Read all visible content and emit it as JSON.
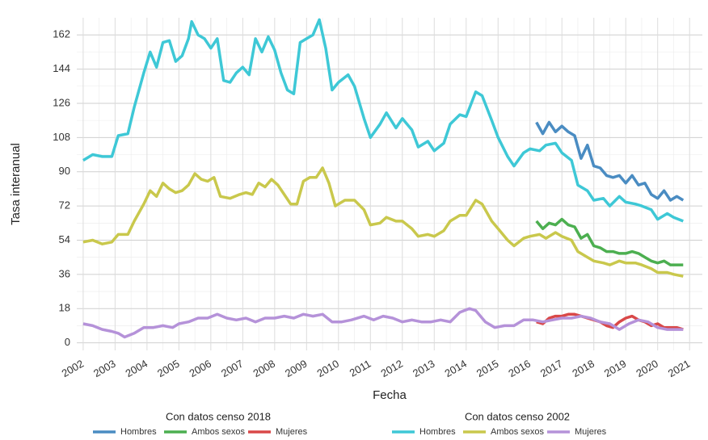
{
  "chart_data": {
    "type": "line",
    "x_label": "Fecha",
    "y_label": "Tasa interanual",
    "xlim": [
      2001.8,
      2021.4
    ],
    "ylim": [
      -4,
      171
    ],
    "xticks": [
      2002,
      2003,
      2004,
      2005,
      2006,
      2007,
      2008,
      2009,
      2010,
      2011,
      2012,
      2013,
      2014,
      2015,
      2016,
      2017,
      2018,
      2019,
      2020,
      2021
    ],
    "yticks": [
      0,
      18,
      36,
      54,
      72,
      90,
      108,
      126,
      144,
      162
    ],
    "grid": true,
    "groups": [
      {
        "title": "Con datos censo 2018",
        "series": [
          {
            "name": "Hombres",
            "color": "#4a8cc2",
            "x": [
              2016.2,
              2016.4,
              2016.6,
              2016.8,
              2017.0,
              2017.2,
              2017.4,
              2017.6,
              2017.8,
              2018.0,
              2018.2,
              2018.4,
              2018.6,
              2018.8,
              2019.0,
              2019.2,
              2019.4,
              2019.6,
              2019.8,
              2020.0,
              2020.2,
              2020.4,
              2020.6,
              2020.8
            ],
            "values": [
              116,
              110,
              116,
              111,
              114,
              111,
              109,
              97,
              104,
              93,
              92,
              88,
              87,
              88,
              84,
              88,
              83,
              84,
              78,
              76,
              80,
              75,
              77,
              75
            ]
          },
          {
            "name": "Ambos sexos",
            "color": "#4caf50",
            "x": [
              2016.2,
              2016.4,
              2016.6,
              2016.8,
              2017.0,
              2017.2,
              2017.4,
              2017.6,
              2017.8,
              2018.0,
              2018.2,
              2018.4,
              2018.6,
              2018.8,
              2019.0,
              2019.2,
              2019.4,
              2019.6,
              2019.8,
              2020.0,
              2020.2,
              2020.4,
              2020.6,
              2020.8
            ],
            "values": [
              64,
              60,
              63,
              62,
              65,
              62,
              61,
              55,
              57,
              51,
              50,
              48,
              48,
              47,
              47,
              48,
              47,
              45,
              43,
              42,
              43,
              41,
              41,
              41
            ]
          },
          {
            "name": "Mujeres",
            "color": "#d94848",
            "x": [
              2016.2,
              2016.4,
              2016.6,
              2016.8,
              2017.0,
              2017.2,
              2017.4,
              2017.6,
              2017.8,
              2018.0,
              2018.2,
              2018.4,
              2018.6,
              2018.8,
              2019.0,
              2019.2,
              2019.4,
              2019.6,
              2019.8,
              2020.0,
              2020.2,
              2020.4,
              2020.6,
              2020.8
            ],
            "values": [
              11,
              10,
              13,
              14,
              14,
              15,
              15,
              14,
              13,
              12,
              11,
              9,
              8,
              11,
              13,
              14,
              12,
              11,
              9,
              10,
              8,
              8,
              8,
              7
            ]
          }
        ]
      },
      {
        "title": "Con datos censo 2002",
        "series": [
          {
            "name": "Hombres",
            "color": "#3ec8d6",
            "x": [
              2002.0,
              2002.3,
              2002.6,
              2002.9,
              2003.1,
              2003.4,
              2003.6,
              2003.9,
              2004.1,
              2004.3,
              2004.5,
              2004.7,
              2004.9,
              2005.1,
              2005.3,
              2005.4,
              2005.6,
              2005.8,
              2006.0,
              2006.2,
              2006.4,
              2006.6,
              2006.8,
              2007.0,
              2007.2,
              2007.4,
              2007.6,
              2007.8,
              2008.0,
              2008.2,
              2008.4,
              2008.6,
              2008.8,
              2009.0,
              2009.2,
              2009.4,
              2009.6,
              2009.8,
              2010.0,
              2010.3,
              2010.5,
              2010.8,
              2011.0,
              2011.3,
              2011.5,
              2011.8,
              2012.0,
              2012.3,
              2012.5,
              2012.8,
              2013.0,
              2013.3,
              2013.5,
              2013.8,
              2014.0,
              2014.3,
              2014.5,
              2014.8,
              2015.0,
              2015.3,
              2015.5,
              2015.8,
              2016.0,
              2016.3,
              2016.5,
              2016.8,
              2017.0,
              2017.3,
              2017.5,
              2017.8,
              2018.0,
              2018.3,
              2018.5,
              2018.8,
              2019.0,
              2019.3,
              2019.5,
              2019.8,
              2020.0,
              2020.3,
              2020.5,
              2020.8
            ],
            "values": [
              96,
              99,
              98,
              98,
              109,
              110,
              124,
              142,
              153,
              145,
              158,
              159,
              148,
              151,
              160,
              169,
              162,
              160,
              155,
              160,
              138,
              137,
              142,
              145,
              141,
              160,
              153,
              161,
              154,
              142,
              133,
              131,
              158,
              160,
              162,
              170,
              155,
              133,
              137,
              141,
              135,
              118,
              108,
              115,
              121,
              113,
              118,
              112,
              103,
              106,
              101,
              105,
              115,
              120,
              119,
              132,
              130,
              117,
              108,
              98,
              93,
              100,
              102,
              101,
              104,
              105,
              100,
              96,
              83,
              80,
              75,
              76,
              72,
              77,
              74,
              73,
              72,
              70,
              65,
              68,
              66,
              64
            ]
          },
          {
            "name": "Ambos sexos",
            "color": "#c9c84c",
            "x": [
              2002.0,
              2002.3,
              2002.6,
              2002.9,
              2003.1,
              2003.4,
              2003.6,
              2003.9,
              2004.1,
              2004.3,
              2004.5,
              2004.7,
              2004.9,
              2005.1,
              2005.3,
              2005.5,
              2005.7,
              2005.9,
              2006.1,
              2006.3,
              2006.6,
              2006.9,
              2007.1,
              2007.3,
              2007.5,
              2007.7,
              2007.9,
              2008.1,
              2008.3,
              2008.5,
              2008.7,
              2008.9,
              2009.1,
              2009.3,
              2009.5,
              2009.7,
              2009.9,
              2010.2,
              2010.5,
              2010.8,
              2011.0,
              2011.3,
              2011.5,
              2011.8,
              2012.0,
              2012.3,
              2012.5,
              2012.8,
              2013.0,
              2013.3,
              2013.5,
              2013.8,
              2014.0,
              2014.3,
              2014.5,
              2014.8,
              2015.0,
              2015.3,
              2015.5,
              2015.8,
              2016.0,
              2016.3,
              2016.5,
              2016.8,
              2017.0,
              2017.3,
              2017.5,
              2017.8,
              2018.0,
              2018.3,
              2018.5,
              2018.8,
              2019.0,
              2019.3,
              2019.5,
              2019.8,
              2020.0,
              2020.3,
              2020.5,
              2020.8
            ],
            "values": [
              53,
              54,
              52,
              53,
              57,
              57,
              64,
              73,
              80,
              77,
              84,
              81,
              79,
              80,
              83,
              89,
              86,
              85,
              87,
              77,
              76,
              78,
              79,
              78,
              84,
              82,
              86,
              83,
              78,
              73,
              73,
              85,
              87,
              87,
              92,
              84,
              72,
              75,
              75,
              70,
              62,
              63,
              66,
              64,
              64,
              60,
              56,
              57,
              56,
              59,
              64,
              67,
              67,
              75,
              73,
              64,
              60,
              54,
              51,
              55,
              56,
              57,
              55,
              58,
              56,
              54,
              48,
              45,
              43,
              42,
              41,
              43,
              42,
              42,
              41,
              39,
              37,
              37,
              36,
              35
            ]
          },
          {
            "name": "Mujeres",
            "color": "#b592d9",
            "x": [
              2002.0,
              2002.3,
              2002.6,
              2002.9,
              2003.1,
              2003.3,
              2003.6,
              2003.9,
              2004.2,
              2004.5,
              2004.8,
              2005.0,
              2005.3,
              2005.6,
              2005.9,
              2006.2,
              2006.5,
              2006.8,
              2007.1,
              2007.4,
              2007.7,
              2008.0,
              2008.3,
              2008.6,
              2008.9,
              2009.2,
              2009.5,
              2009.8,
              2010.1,
              2010.4,
              2010.8,
              2011.1,
              2011.4,
              2011.7,
              2012.0,
              2012.3,
              2012.6,
              2012.9,
              2013.2,
              2013.5,
              2013.8,
              2014.1,
              2014.3,
              2014.6,
              2014.9,
              2015.2,
              2015.5,
              2015.8,
              2016.1,
              2016.4,
              2016.7,
              2017.0,
              2017.3,
              2017.6,
              2017.9,
              2018.2,
              2018.5,
              2018.8,
              2019.1,
              2019.4,
              2019.7,
              2020.0,
              2020.3,
              2020.6,
              2020.8
            ],
            "values": [
              10,
              9,
              7,
              6,
              5,
              3,
              5,
              8,
              8,
              9,
              8,
              10,
              11,
              13,
              13,
              15,
              13,
              12,
              13,
              11,
              13,
              13,
              14,
              13,
              15,
              14,
              15,
              11,
              11,
              12,
              14,
              12,
              14,
              13,
              11,
              12,
              11,
              11,
              12,
              11,
              16,
              18,
              17,
              11,
              8,
              9,
              9,
              12,
              12,
              11,
              12,
              13,
              13,
              14,
              13,
              11,
              10,
              7,
              10,
              12,
              11,
              8,
              7,
              7,
              7
            ]
          }
        ]
      }
    ]
  }
}
